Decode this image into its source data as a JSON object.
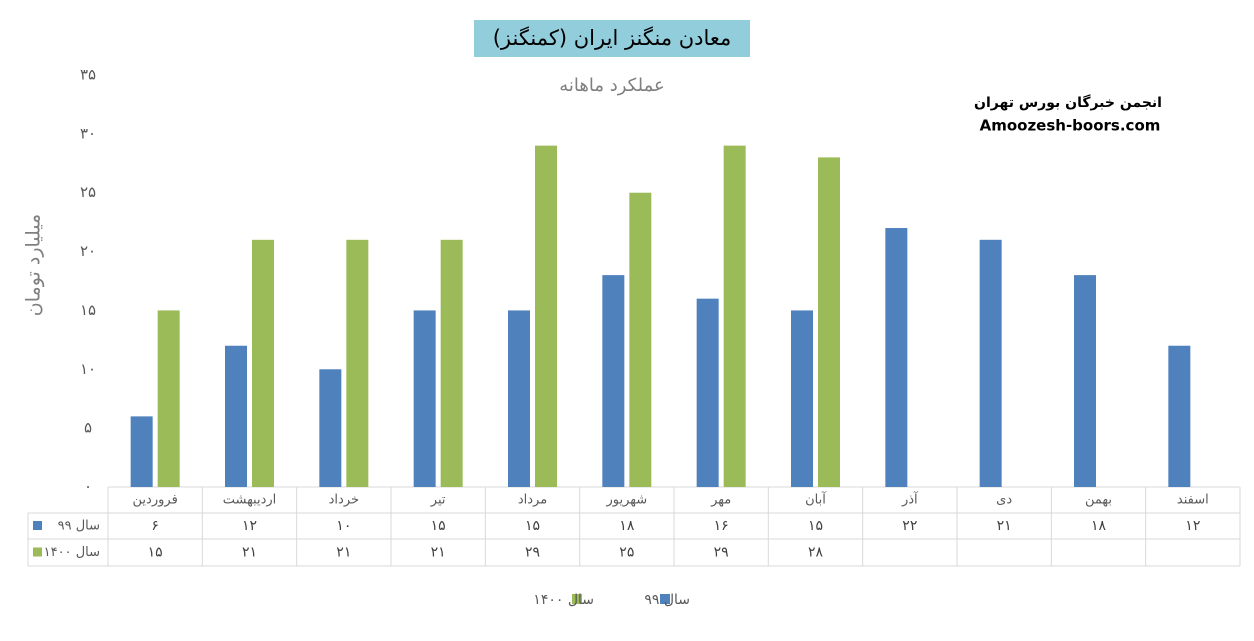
{
  "chart_data": {
    "type": "bar",
    "title": "معادن منگنز ایران (کمنگنز)",
    "subtitle": "عملکرد ماهانه",
    "y_label": "میلیارد تومان",
    "watermark": [
      "انجمن خبرگان بورس تهران",
      "Amoozesh-boors.com"
    ],
    "categories": [
      "فروردین",
      "اردیبهشت",
      "خرداد",
      "تیر",
      "مرداد",
      "شهریور",
      "مهر",
      "آبان",
      "آذر",
      "دی",
      "بهمن",
      "اسفند"
    ],
    "series": [
      {
        "name": "سال ۹۹",
        "color": "#4f81bd",
        "values": [
          6,
          12,
          10,
          15,
          15,
          18,
          16,
          15,
          22,
          21,
          18,
          12
        ],
        "value_labels": [
          "۶",
          "۱۲",
          "۱۰",
          "۱۵",
          "۱۵",
          "۱۸",
          "۱۶",
          "۱۵",
          "۲۲",
          "۲۱",
          "۱۸",
          "۱۲"
        ]
      },
      {
        "name": "سال ۱۴۰۰",
        "color": "#9bbb59",
        "values": [
          15,
          21,
          21,
          21,
          29,
          25,
          29,
          28,
          null,
          null,
          null,
          null
        ],
        "value_labels": [
          "۱۵",
          "۲۱",
          "۲۱",
          "۲۱",
          "۲۹",
          "۲۵",
          "۲۹",
          "۲۸",
          null,
          null,
          null,
          null
        ]
      }
    ],
    "ylim": [
      0,
      35
    ],
    "yticks": [
      {
        "value": 0,
        "label": "۰"
      },
      {
        "value": 5,
        "label": "۵"
      },
      {
        "value": 10,
        "label": "۱۰"
      },
      {
        "value": 15,
        "label": "۱۵"
      },
      {
        "value": 20,
        "label": "۲۰"
      },
      {
        "value": 25,
        "label": "۲۵"
      },
      {
        "value": 30,
        "label": "۳۰"
      },
      {
        "value": 35,
        "label": "۳۵"
      }
    ],
    "grid": false,
    "legend": "bottom"
  }
}
